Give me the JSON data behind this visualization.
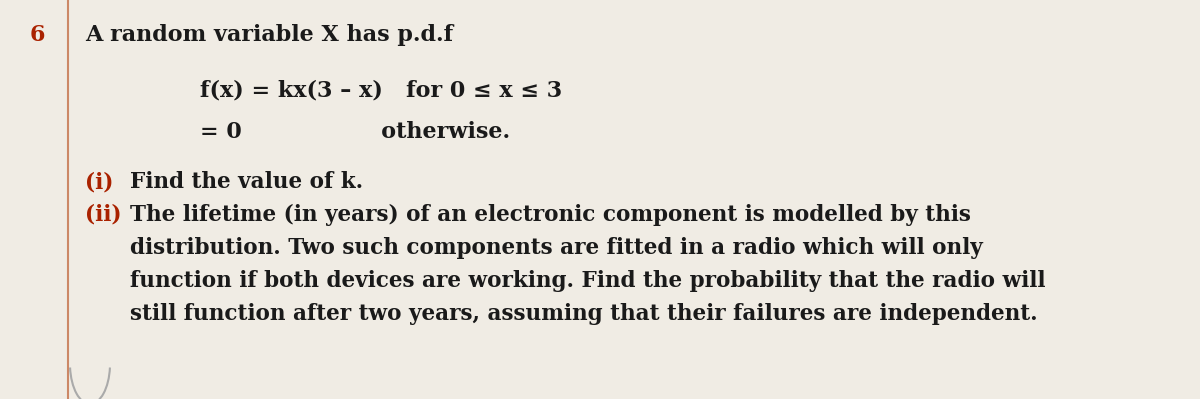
{
  "background_color": "#f0ece4",
  "line_color": "#cc8866",
  "question_number": "6",
  "question_number_color": "#aa2200",
  "title_text": "A random variable X has p.d.f",
  "formula_line1": "f(x) = kx(3 – x)   for 0 ≤ x ≤ 3",
  "formula_line2": "= 0                  otherwise.",
  "part_i_label": "(i)",
  "part_i_label_color": "#aa2200",
  "part_i_text": "Find the value of k.",
  "part_ii_label": "(ii)",
  "part_ii_label_color": "#aa2200",
  "part_ii_line1": "The lifetime (in years) of an electronic component is modelled by this",
  "part_ii_line2": "distribution. Two such components are fitted in a radio which will only",
  "part_ii_line3": "function if both devices are working. Find the probability that the radio will",
  "part_ii_line4": "still function after two years, assuming that their failures are independent.",
  "title_fontsize": 16,
  "formula_fontsize": 16,
  "body_fontsize": 15.5,
  "label_fontsize": 15.5,
  "qnum_fontsize": 16
}
